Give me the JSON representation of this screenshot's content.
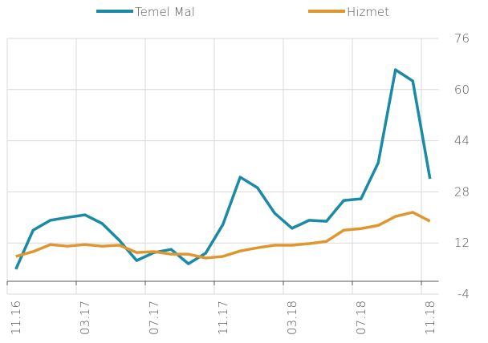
{
  "chart_data": {
    "type": "line",
    "categories": [
      "11.16",
      null,
      null,
      null,
      "03.17",
      null,
      null,
      null,
      "07.17",
      null,
      null,
      null,
      "11.17",
      null,
      null,
      null,
      "03.18",
      null,
      null,
      null,
      "07.18",
      null,
      null,
      null,
      "11.18"
    ],
    "series": [
      {
        "name": "Temel Mal",
        "color": "#1a8aa5",
        "values": [
          3.8,
          16.0,
          19.1,
          20.0,
          20.8,
          18.1,
          12.8,
          6.5,
          9.0,
          10.0,
          5.5,
          8.8,
          17.8,
          32.6,
          29.3,
          21.3,
          16.6,
          19.1,
          18.8,
          25.3,
          25.8,
          37.1,
          66.2,
          62.7,
          32.1
        ]
      },
      {
        "name": "Hizmet",
        "color": "#e0962f",
        "values": [
          7.8,
          9.3,
          11.5,
          11.0,
          11.5,
          11.0,
          11.3,
          9.0,
          9.3,
          8.5,
          8.5,
          7.3,
          7.8,
          9.5,
          10.5,
          11.3,
          11.3,
          11.8,
          12.5,
          16.0,
          16.5,
          17.5,
          20.3,
          21.6,
          18.8
        ]
      }
    ],
    "ylim": [
      -4,
      76
    ],
    "yticks": [
      -4,
      12,
      28,
      44,
      60,
      76
    ],
    "grid": true,
    "legend": "top"
  }
}
